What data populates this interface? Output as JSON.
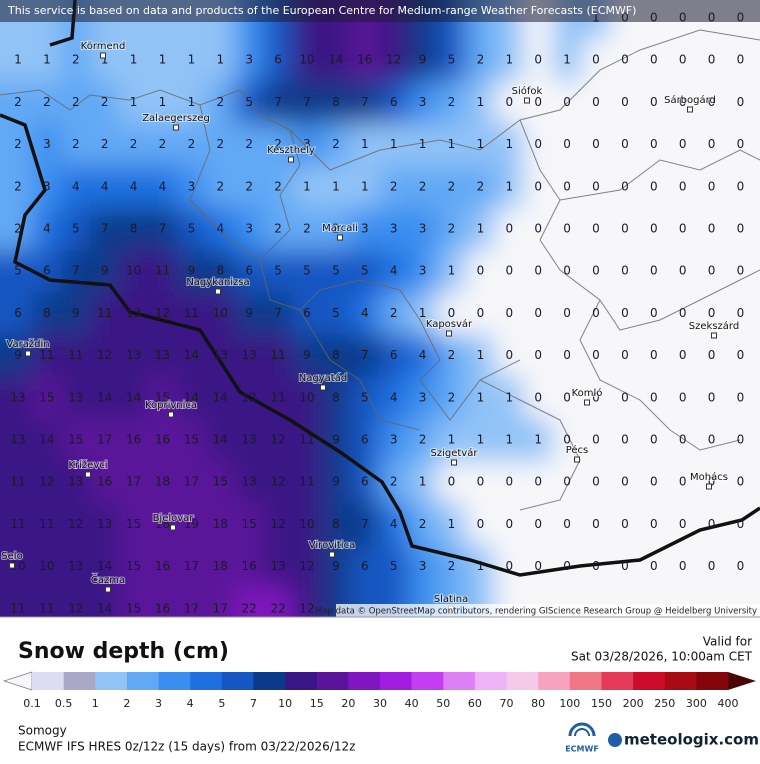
{
  "header": {
    "notice": "This service is based on data and products of the European Centre for Medium-range Weather Forecasts (ECMWF)"
  },
  "attribution": "Map data © OpenStreetMap contributors, rendering GIScience Research Group @ Heidelberg University",
  "places": [
    "Körmend",
    "Zalaegerszeg",
    "Keszthely",
    "Marcali",
    "Siófok",
    "Sárbogárd",
    "Nagykanizsa",
    "Kaposvár",
    "Szekszárd",
    "Varaždin",
    "Nagyatád",
    "Koprivnica",
    "Komló",
    "Pécs",
    "Križevci",
    "Szigetvár",
    "Mohács",
    "Bjelovar",
    "Virovitica",
    "Čazma",
    "Slatina",
    "Selo"
  ],
  "grid": {
    "rows": [
      [
        null,
        null,
        null,
        null,
        null,
        null,
        null,
        null,
        null,
        null,
        null,
        null,
        null,
        null,
        null,
        null,
        null,
        null,
        null,
        null,
        1,
        0,
        0,
        0,
        0,
        0
      ],
      [
        1,
        1,
        2,
        1,
        1,
        1,
        1,
        1,
        3,
        6,
        10,
        14,
        16,
        12,
        9,
        5,
        2,
        1,
        0,
        1,
        0,
        0,
        0,
        0,
        0,
        0
      ],
      [
        2,
        2,
        2,
        2,
        1,
        1,
        1,
        2,
        5,
        7,
        7,
        8,
        7,
        6,
        3,
        2,
        1,
        0,
        0,
        0,
        0,
        0,
        0,
        0,
        0,
        0
      ],
      [
        2,
        3,
        2,
        2,
        2,
        2,
        2,
        2,
        2,
        2,
        3,
        2,
        1,
        1,
        1,
        1,
        1,
        1,
        0,
        0,
        0,
        0,
        0,
        0,
        0,
        0
      ],
      [
        2,
        3,
        4,
        4,
        4,
        4,
        3,
        2,
        2,
        2,
        1,
        1,
        1,
        2,
        2,
        2,
        2,
        1,
        0,
        0,
        0,
        0,
        0,
        0,
        0,
        0
      ],
      [
        2,
        4,
        5,
        7,
        8,
        7,
        5,
        4,
        3,
        2,
        2,
        2,
        3,
        3,
        3,
        2,
        1,
        0,
        0,
        0,
        0,
        0,
        0,
        0,
        0,
        0
      ],
      [
        5,
        6,
        7,
        9,
        10,
        11,
        9,
        8,
        6,
        5,
        5,
        5,
        5,
        4,
        3,
        1,
        0,
        0,
        0,
        0,
        0,
        0,
        0,
        0,
        0,
        0
      ],
      [
        6,
        8,
        9,
        11,
        13,
        12,
        11,
        10,
        9,
        7,
        6,
        5,
        4,
        2,
        1,
        0,
        0,
        0,
        0,
        0,
        0,
        0,
        0,
        0,
        0,
        0
      ],
      [
        9,
        11,
        11,
        12,
        13,
        13,
        14,
        13,
        13,
        11,
        9,
        8,
        7,
        6,
        4,
        2,
        1,
        0,
        0,
        0,
        0,
        0,
        0,
        0,
        0,
        0
      ],
      [
        13,
        15,
        13,
        14,
        14,
        15,
        14,
        14,
        12,
        11,
        10,
        8,
        5,
        4,
        3,
        2,
        1,
        1,
        0,
        0,
        0,
        0,
        0,
        0,
        0,
        0
      ],
      [
        13,
        14,
        15,
        17,
        16,
        16,
        15,
        14,
        13,
        12,
        11,
        9,
        6,
        3,
        2,
        1,
        1,
        1,
        1,
        0,
        0,
        0,
        0,
        0,
        0,
        0
      ],
      [
        11,
        12,
        13,
        16,
        17,
        18,
        17,
        15,
        13,
        12,
        11,
        9,
        6,
        2,
        1,
        0,
        0,
        0,
        0,
        0,
        0,
        0,
        0,
        0,
        0,
        0
      ],
      [
        11,
        11,
        12,
        13,
        15,
        18,
        19,
        18,
        15,
        12,
        10,
        8,
        7,
        4,
        2,
        1,
        0,
        0,
        0,
        0,
        0,
        0,
        0,
        0,
        0,
        0
      ],
      [
        10,
        10,
        13,
        14,
        15,
        16,
        17,
        18,
        16,
        13,
        12,
        9,
        6,
        5,
        3,
        2,
        1,
        0,
        0,
        0,
        0,
        0,
        0,
        0,
        0,
        0
      ],
      [
        11,
        11,
        12,
        14,
        15,
        16,
        17,
        17,
        22,
        22,
        12,
        null,
        null,
        null,
        null,
        null,
        null,
        null,
        null,
        null,
        null,
        null,
        null,
        null,
        null,
        null
      ]
    ]
  },
  "legend": {
    "title": "Snow depth (cm)",
    "ticks": [
      0.1,
      0.5,
      1,
      2,
      3,
      4,
      5,
      7,
      10,
      15,
      20,
      30,
      40,
      50,
      60,
      70,
      80,
      100,
      150,
      200,
      250,
      300,
      400
    ],
    "colors": [
      "#f7f7f9",
      "#dcdcf5",
      "#a8a8c6",
      "#91c3f7",
      "#62a9f5",
      "#3a8ef0",
      "#1f6fe0",
      "#1456c2",
      "#0c3a8a",
      "#3a1585",
      "#5a1499",
      "#7f16bf",
      "#a01de0",
      "#c23ef0",
      "#df7ff5",
      "#efb2f7",
      "#f6c9ea",
      "#f7a3c0",
      "#f27786",
      "#e43c58",
      "#cc0a2a",
      "#a70c14",
      "#84060a",
      "#4a0505"
    ]
  },
  "valid": {
    "label": "Valid for",
    "time": "Sat 03/28/2026, 10:00am CET"
  },
  "region": "Somogy",
  "model": "ECMWF IFS HRES 0z/12z (15 days) from 03/22/2026/12z",
  "logos": {
    "ecmwf": "ECMWF",
    "site": "meteologix.com"
  }
}
